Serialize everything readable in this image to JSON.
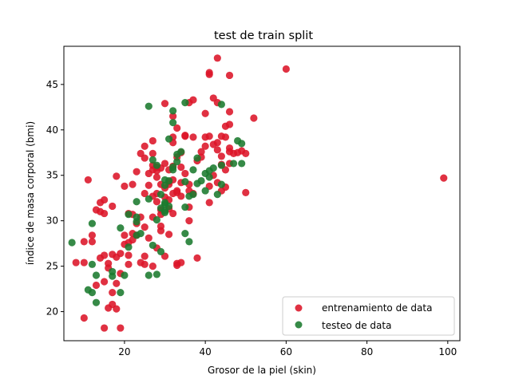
{
  "chart_data": {
    "type": "scatter",
    "title": "test de train split",
    "xlabel": "Grosor de la piel (skin)",
    "ylabel": "índice de masa corporal (bmi)",
    "xlim": [
      5,
      103
    ],
    "ylim": [
      16.8,
      49.2
    ],
    "xticks": [
      20,
      40,
      60,
      80,
      100
    ],
    "yticks": [
      20,
      25,
      30,
      35,
      40,
      45
    ],
    "grid": false,
    "legend": {
      "position": "lower-right"
    },
    "series": [
      {
        "name": "entrenamiento de data",
        "color": "#dc1428",
        "points": [
          [
            10,
            19.3
          ],
          [
            15,
            18.2
          ],
          [
            19,
            18.2
          ],
          [
            16,
            20.4
          ],
          [
            17,
            20.8
          ],
          [
            18,
            20.3
          ],
          [
            17,
            22.1
          ],
          [
            18,
            23.1
          ],
          [
            15,
            23.3
          ],
          [
            13,
            22.9
          ],
          [
            11,
            34.5
          ],
          [
            8,
            25.4
          ],
          [
            10,
            25.4
          ],
          [
            10,
            27.7
          ],
          [
            12,
            27.7
          ],
          [
            12,
            28.4
          ],
          [
            14,
            25.9
          ],
          [
            15,
            26.2
          ],
          [
            16,
            25.3
          ],
          [
            17,
            26.3
          ],
          [
            18,
            26.0
          ],
          [
            19,
            26.4
          ],
          [
            14,
            31.0
          ],
          [
            15,
            32.3
          ],
          [
            13,
            31.2
          ],
          [
            14,
            32.0
          ],
          [
            15,
            30.8
          ],
          [
            17,
            31.6
          ],
          [
            18,
            34.9
          ],
          [
            20,
            33.8
          ],
          [
            20,
            28.4
          ],
          [
            21,
            30.8
          ],
          [
            22,
            28.6
          ],
          [
            21,
            26.2
          ],
          [
            20,
            27.4
          ],
          [
            21,
            25.2
          ],
          [
            22,
            27.9
          ],
          [
            23,
            28.4
          ],
          [
            23,
            35.4
          ],
          [
            22,
            34.0
          ],
          [
            24,
            30.4
          ],
          [
            25,
            29.3
          ],
          [
            26,
            28.1
          ],
          [
            25,
            33.0
          ],
          [
            25,
            36.9
          ],
          [
            26,
            35.2
          ],
          [
            24,
            37.4
          ],
          [
            25,
            38.2
          ],
          [
            27,
            38.8
          ],
          [
            27,
            37.4
          ],
          [
            27,
            36.1
          ],
          [
            27,
            35.6
          ],
          [
            28,
            35.9
          ],
          [
            28,
            34.8
          ],
          [
            29,
            34.0
          ],
          [
            28,
            33.0
          ],
          [
            27,
            32.7
          ],
          [
            28,
            32.1
          ],
          [
            29,
            31.2
          ],
          [
            29,
            30.7
          ],
          [
            29,
            28.9
          ],
          [
            27,
            30.4
          ],
          [
            27,
            25.0
          ],
          [
            25,
            25.2
          ],
          [
            25,
            26.1
          ],
          [
            28,
            27.0
          ],
          [
            29,
            29.4
          ],
          [
            30,
            32.6
          ],
          [
            30,
            33.6
          ],
          [
            31,
            34.0
          ],
          [
            31,
            34.3
          ],
          [
            32,
            34.5
          ],
          [
            32,
            33.0
          ],
          [
            31,
            32.3
          ],
          [
            31,
            31.3
          ],
          [
            32,
            30.8
          ],
          [
            31,
            28.5
          ],
          [
            30,
            26.1
          ],
          [
            33,
            25.3
          ],
          [
            33,
            25.1
          ],
          [
            34,
            25.4
          ],
          [
            33,
            33.1
          ],
          [
            33,
            33.3
          ],
          [
            34,
            34.2
          ],
          [
            34,
            35.9
          ],
          [
            33,
            37.0
          ],
          [
            34,
            37.5
          ],
          [
            32,
            38.6
          ],
          [
            32,
            39.2
          ],
          [
            35,
            39.3
          ],
          [
            37,
            39.2
          ],
          [
            35,
            35.2
          ],
          [
            36,
            34.0
          ],
          [
            36,
            33.3
          ],
          [
            37,
            33.0
          ],
          [
            36,
            31.5
          ],
          [
            36,
            30.0
          ],
          [
            38,
            25.9
          ],
          [
            38,
            36.6
          ],
          [
            39,
            37.0
          ],
          [
            39,
            37.6
          ],
          [
            40,
            38.2
          ],
          [
            40,
            39.2
          ],
          [
            41,
            39.3
          ],
          [
            42,
            38.4
          ],
          [
            43,
            38.6
          ],
          [
            43,
            37.8
          ],
          [
            44,
            37.1
          ],
          [
            44,
            36.2
          ],
          [
            45,
            35.6
          ],
          [
            45,
            33.7
          ],
          [
            43,
            34.2
          ],
          [
            42,
            35.0
          ],
          [
            41,
            33.8
          ],
          [
            41,
            32.0
          ],
          [
            44,
            33.3
          ],
          [
            46,
            36.3
          ],
          [
            46,
            37.6
          ],
          [
            47,
            37.4
          ],
          [
            48,
            37.5
          ],
          [
            49,
            37.7
          ],
          [
            50,
            37.4
          ],
          [
            46,
            38.0
          ],
          [
            45,
            39.2
          ],
          [
            44,
            39.3
          ],
          [
            45,
            40.4
          ],
          [
            46,
            40.6
          ],
          [
            46,
            42.0
          ],
          [
            52,
            41.3
          ],
          [
            50,
            33.1
          ],
          [
            30,
            42.9
          ],
          [
            32,
            41.5
          ],
          [
            33,
            40.2
          ],
          [
            36,
            43.0
          ],
          [
            37,
            43.3
          ],
          [
            40,
            41.8
          ],
          [
            42,
            43.5
          ],
          [
            43,
            43.0
          ],
          [
            43,
            47.9
          ],
          [
            41,
            46.1
          ],
          [
            41,
            46.3
          ],
          [
            46,
            46.0
          ],
          [
            60,
            46.7
          ],
          [
            99,
            34.7
          ],
          [
            22,
            30.7
          ],
          [
            29,
            35.8
          ],
          [
            30,
            36.3
          ],
          [
            26,
            33.9
          ],
          [
            24,
            25.4
          ],
          [
            16,
            24.8
          ],
          [
            19,
            24.2
          ],
          [
            23,
            29.7
          ],
          [
            21,
            27.6
          ],
          [
            35,
            39.4
          ],
          [
            34,
            32.7
          ],
          [
            31,
            35.6
          ],
          [
            32,
            36.0
          ],
          [
            28,
            35.5
          ]
        ]
      },
      {
        "name": "testeo de data",
        "color": "#1a7a2e",
        "points": [
          [
            7,
            27.6
          ],
          [
            11,
            22.4
          ],
          [
            12,
            22.1
          ],
          [
            13,
            21.0
          ],
          [
            12,
            25.2
          ],
          [
            12,
            29.7
          ],
          [
            13,
            24.0
          ],
          [
            17,
            23.9
          ],
          [
            17,
            24.4
          ],
          [
            19,
            22.1
          ],
          [
            20,
            24.0
          ],
          [
            19,
            29.2
          ],
          [
            21,
            30.7
          ],
          [
            21,
            27.1
          ],
          [
            23,
            28.4
          ],
          [
            23,
            29.9
          ],
          [
            23,
            30.4
          ],
          [
            23,
            32.1
          ],
          [
            24,
            28.6
          ],
          [
            26,
            24.0
          ],
          [
            28,
            24.1
          ],
          [
            27,
            27.3
          ],
          [
            29,
            26.6
          ],
          [
            28,
            30.1
          ],
          [
            29,
            31.4
          ],
          [
            30,
            31.8
          ],
          [
            30,
            31.1
          ],
          [
            30,
            30.9
          ],
          [
            31,
            31.6
          ],
          [
            30,
            32.0
          ],
          [
            30,
            34.5
          ],
          [
            31,
            34.4
          ],
          [
            30,
            33.9
          ],
          [
            32,
            35.6
          ],
          [
            32,
            35.9
          ],
          [
            33,
            36.5
          ],
          [
            34,
            37.6
          ],
          [
            33,
            37.3
          ],
          [
            31,
            39.0
          ],
          [
            27,
            36.7
          ],
          [
            26,
            32.4
          ],
          [
            29,
            32.9
          ],
          [
            35,
            34.3
          ],
          [
            36,
            32.7
          ],
          [
            35,
            31.5
          ],
          [
            35,
            28.6
          ],
          [
            36,
            27.7
          ],
          [
            37,
            32.9
          ],
          [
            38,
            34.1
          ],
          [
            39,
            34.4
          ],
          [
            40,
            35.2
          ],
          [
            41,
            35.5
          ],
          [
            42,
            35.8
          ],
          [
            44,
            36.1
          ],
          [
            43,
            32.9
          ],
          [
            44,
            34.0
          ],
          [
            47,
            36.3
          ],
          [
            49,
            36.3
          ],
          [
            48,
            38.8
          ],
          [
            49,
            38.5
          ],
          [
            26,
            42.6
          ],
          [
            32,
            42.1
          ],
          [
            32,
            40.8
          ],
          [
            35,
            43.0
          ],
          [
            44,
            42.8
          ],
          [
            40,
            33.3
          ],
          [
            41,
            34.8
          ],
          [
            28,
            36.1
          ],
          [
            37,
            35.6
          ],
          [
            38,
            36.9
          ]
        ]
      }
    ]
  }
}
